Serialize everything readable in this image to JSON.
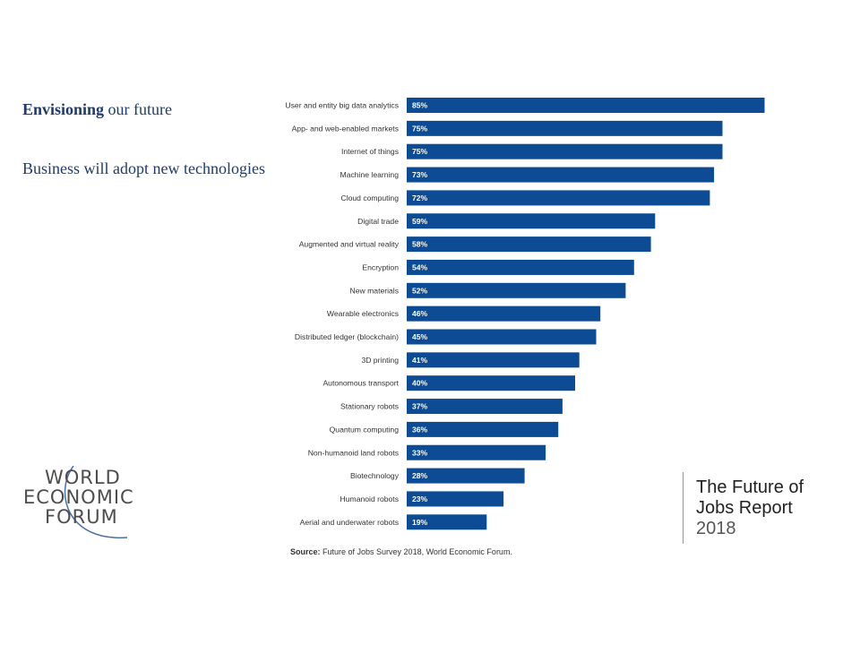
{
  "headline": {
    "bold": "Envisioning",
    "rest": " our future"
  },
  "subline": "Business will adopt new technologies",
  "source": {
    "label": "Source:",
    "text": " Future of Jobs Survey 2018, World Economic Forum."
  },
  "logo": {
    "line1": "WORLD",
    "line2": "ECONOMIC",
    "line3": "FORUM"
  },
  "report": {
    "line1": "The Future of",
    "line2": "Jobs Report",
    "year": "2018"
  },
  "colors": {
    "bar": "#0d4c94",
    "title": "#1f3a6e"
  },
  "chart_data": {
    "type": "bar",
    "orientation": "horizontal",
    "categories": [
      "User and entity big data analytics",
      "App- and web-enabled markets",
      "Internet of things",
      "Machine learning",
      "Cloud computing",
      "Digital trade",
      "Augmented and virtual reality",
      "Encryption",
      "New materials",
      "Wearable electronics",
      "Distributed ledger (blockchain)",
      "3D printing",
      "Autonomous transport",
      "Stationary robots",
      "Quantum computing",
      "Non-humanoid land robots",
      "Biotechnology",
      "Humanoid robots",
      "Aerial and underwater robots"
    ],
    "values": [
      85,
      75,
      75,
      73,
      72,
      59,
      58,
      54,
      52,
      46,
      45,
      41,
      40,
      37,
      36,
      33,
      28,
      23,
      19
    ],
    "value_suffix": "%",
    "xlim": [
      0,
      100
    ],
    "grid": false,
    "legend": "none"
  }
}
